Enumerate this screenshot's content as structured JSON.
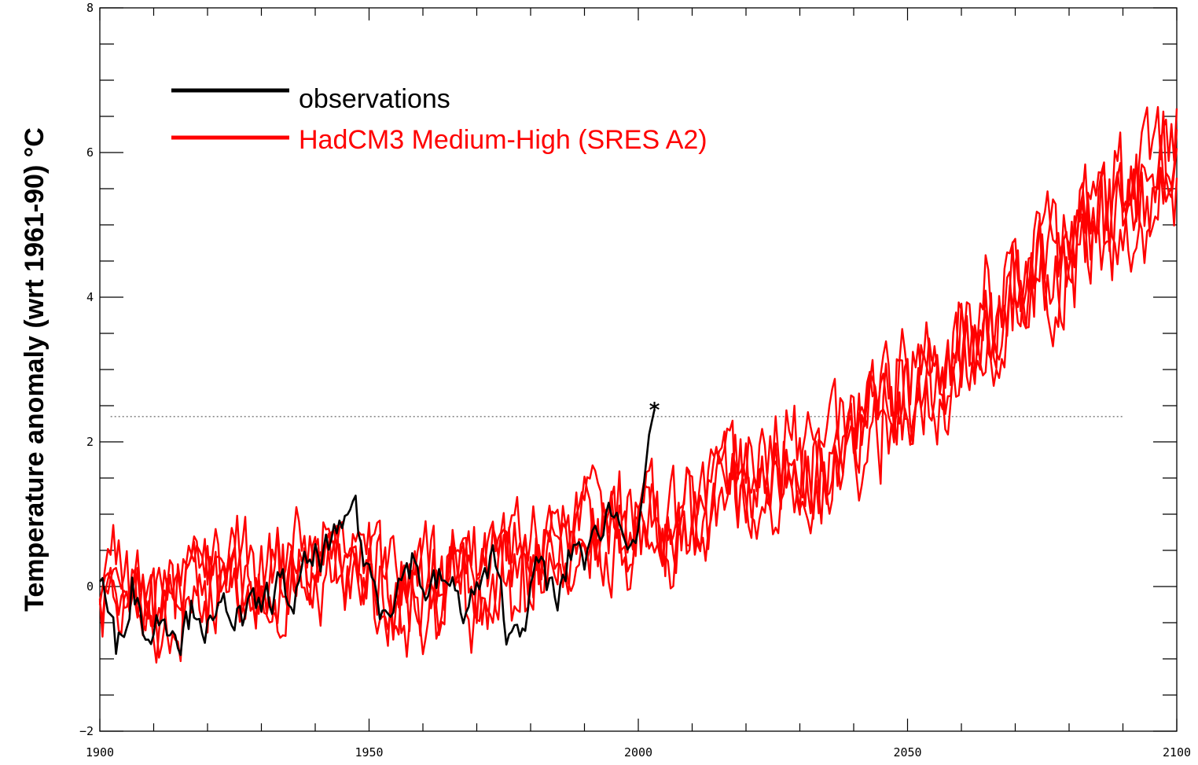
{
  "chart_data": {
    "type": "line",
    "title": "",
    "xlabel": "",
    "ylabel": "Temperature anomaly (wrt 1961-90)  °C",
    "xlim": [
      1900,
      2100
    ],
    "ylim": [
      -2,
      8
    ],
    "x_ticks": [
      {
        "value": 1900,
        "label": "1900"
      },
      {
        "value": 1950,
        "label": "1950"
      },
      {
        "value": 2000,
        "label": "2000"
      },
      {
        "value": 2050,
        "label": "2050"
      },
      {
        "value": 2100,
        "label": "2100"
      }
    ],
    "y_ticks": [
      {
        "value": -2,
        "label": "−2"
      },
      {
        "value": 0,
        "label": "0"
      },
      {
        "value": 2,
        "label": "2"
      },
      {
        "value": 4,
        "label": "4"
      },
      {
        "value": 6,
        "label": "6"
      },
      {
        "value": 8,
        "label": "8"
      }
    ],
    "grid": false,
    "legend_position": "top-left",
    "reference_line": {
      "y": 2.35,
      "x_start": 1902,
      "x_end": 2090,
      "style": "dotted",
      "color": "#777777"
    },
    "marker": {
      "x": 2003,
      "y": 2.5,
      "symbol": "asterisk"
    },
    "series": [
      {
        "name": "observations",
        "color": "#000000",
        "x": [
          1900,
          1903,
          1906,
          1909,
          1912,
          1915,
          1918,
          1921,
          1924,
          1927,
          1930,
          1933,
          1936,
          1939,
          1942,
          1945,
          1947,
          1949,
          1952,
          1955,
          1958,
          1961,
          1964,
          1967,
          1970,
          1973,
          1976,
          1979,
          1982,
          1985,
          1988,
          1991,
          1994,
          1997,
          2000,
          2001,
          2002,
          2003
        ],
        "values": [
          0.2,
          -0.9,
          0.1,
          -0.7,
          -0.3,
          -0.6,
          -0.2,
          -0.7,
          -0.2,
          -0.5,
          -0.3,
          0.0,
          -0.2,
          0.3,
          0.5,
          0.6,
          1.3,
          0.4,
          -0.2,
          0.0,
          0.4,
          -0.1,
          0.1,
          -0.3,
          -0.1,
          0.3,
          -0.7,
          -0.3,
          0.3,
          -0.3,
          0.6,
          0.4,
          1.1,
          0.9,
          0.8,
          1.4,
          2.1,
          2.45
        ]
      },
      {
        "name": "HadCM3 Medium-High (SRES A2)",
        "color": "#ff0000",
        "x": [
          1900,
          1905,
          1910,
          1915,
          1920,
          1925,
          1930,
          1935,
          1940,
          1945,
          1950,
          1955,
          1960,
          1965,
          1970,
          1975,
          1980,
          1985,
          1990,
          1995,
          2000,
          2005,
          2010,
          2015,
          2020,
          2025,
          2030,
          2035,
          2040,
          2045,
          2050,
          2055,
          2060,
          2065,
          2070,
          2075,
          2080,
          2085,
          2090,
          2095,
          2100
        ],
        "values": [
          0.1,
          -0.2,
          -0.3,
          -0.1,
          0.1,
          0.2,
          0.1,
          0.2,
          0.3,
          0.2,
          0.2,
          0.0,
          -0.2,
          0.0,
          0.0,
          0.1,
          0.3,
          0.5,
          0.6,
          0.7,
          0.8,
          0.9,
          1.0,
          1.2,
          1.4,
          1.5,
          1.7,
          1.8,
          2.0,
          2.3,
          2.7,
          3.0,
          3.3,
          3.7,
          4.0,
          4.3,
          4.6,
          5.0,
          5.3,
          5.6,
          5.9
        ]
      }
    ]
  }
}
